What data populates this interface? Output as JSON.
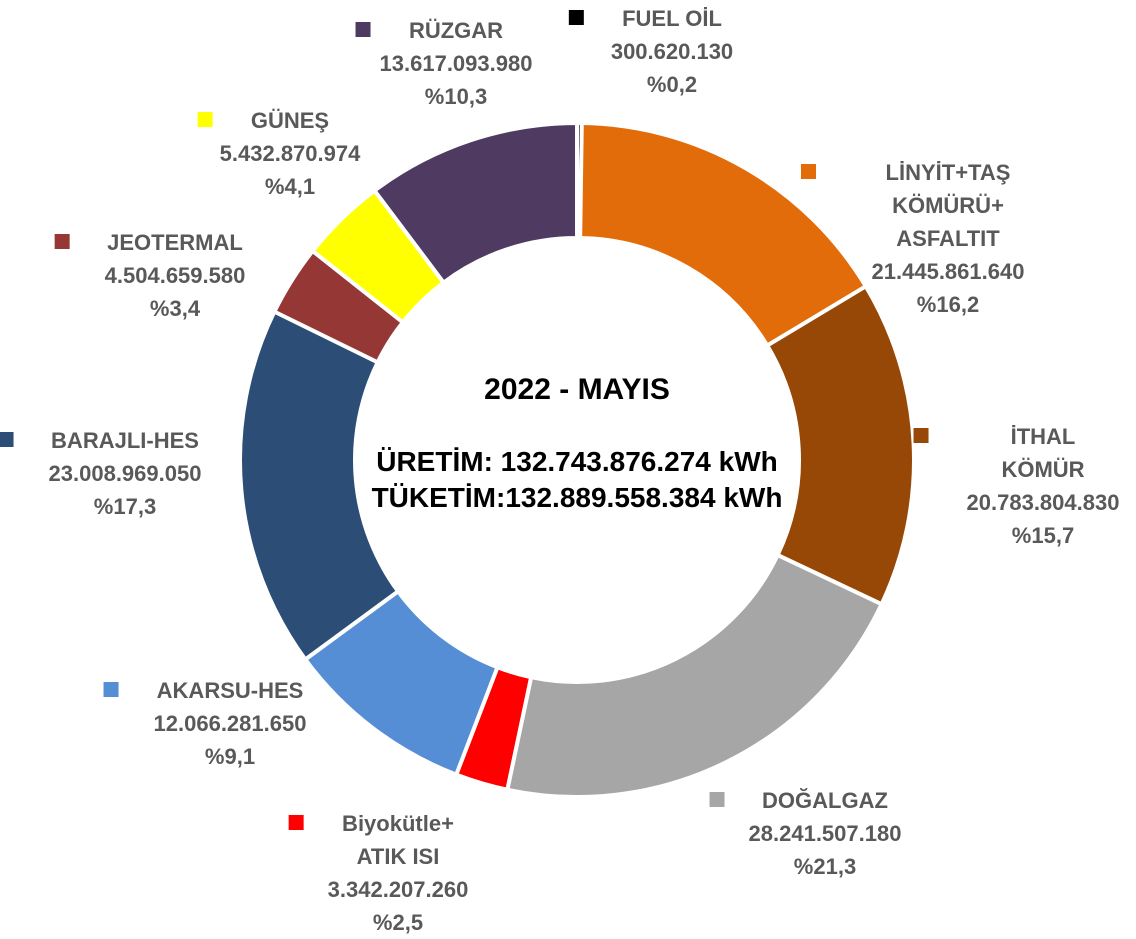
{
  "chart_data": {
    "type": "donut",
    "title": "2022 - MAYIS",
    "annotations": [
      "ÜRETİM: 132.743.876.274 kWh",
      "TÜKETİM:132.889.558.384 kWh"
    ],
    "categories": [
      "FUEL OİL",
      "LİNYİT+TAŞ KÖMÜRÜ+\nASFALTIT",
      "İTHAL KÖMÜR",
      "DOĞALGAZ",
      "Biyokütle+\nATIK ISI",
      "AKARSU-HES",
      "BARAJLI-HES",
      "JEOTERMAL",
      "GÜNEŞ",
      "RÜZGAR"
    ],
    "values": [
      300620130,
      21445861640,
      20783804830,
      28241507180,
      3342207260,
      12066281650,
      23008969050,
      4504659580,
      5432870974,
      13617093980
    ],
    "value_labels": [
      "300.620.130",
      "21.445.861.640",
      "20.783.804.830",
      "28.241.507.180",
      "3.342.207.260",
      "12.066.281.650",
      "23.008.969.050",
      "4.504.659.580",
      "5.432.870.974",
      "13.617.093.980"
    ],
    "percentages": [
      0.2,
      16.2,
      15.7,
      21.3,
      2.5,
      9.1,
      17.3,
      3.4,
      4.1,
      10.3
    ],
    "percentage_labels": [
      "%0,2",
      "%16,2",
      "%15,7",
      "%21,3",
      "%2,5",
      "%9,1",
      "%17,3",
      "%3,4",
      "%4,1",
      "%10,3"
    ],
    "colors": [
      "#000000",
      "#e36c0a",
      "#974806",
      "#a6a6a6",
      "#ff0000",
      "#558ed5",
      "#2c4d75",
      "#953735",
      "#ffff00",
      "#4f3b62"
    ]
  }
}
